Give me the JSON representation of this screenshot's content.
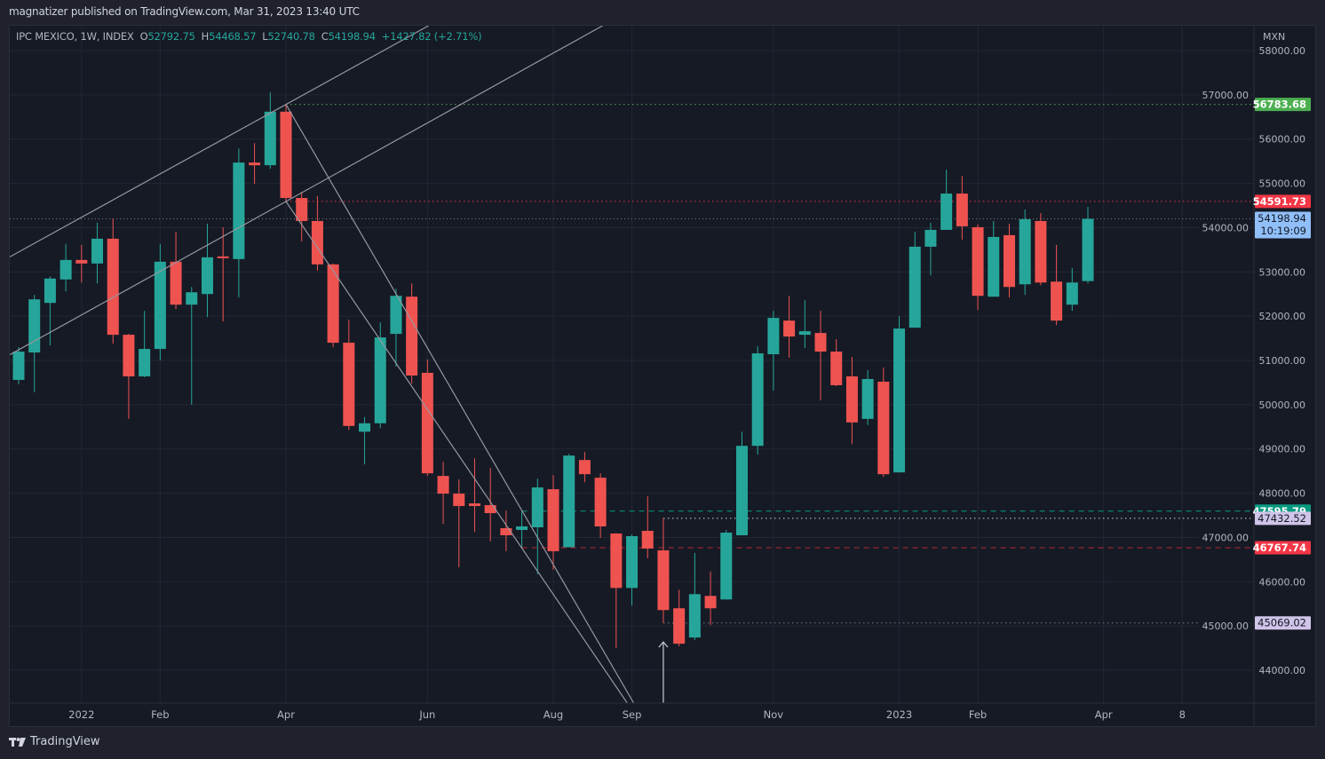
{
  "header": {
    "published": "magnatizer published on TradingView.com, Mar 31, 2023 13:40 UTC"
  },
  "legend": {
    "symbol": "IPC MEXICO, 1W, INDEX",
    "o_label": "O",
    "o_value": "52792.75",
    "h_label": "H",
    "h_value": "54468.57",
    "l_label": "L",
    "l_value": "52740.78",
    "c_label": "C",
    "c_value": "54198.94",
    "change": "+1427.82 (+2.71%)"
  },
  "footer": {
    "brand": "TradingView",
    "logo_icon": "tradingview-logo-icon"
  },
  "colors": {
    "up": "#26a69a",
    "down": "#ef5350",
    "background": "#161a25",
    "grid": "#232733"
  },
  "chart_data": {
    "type": "candlestick",
    "interval": "1W",
    "currency": "MXN",
    "grid": true,
    "ylim": [
      43250,
      58900
    ],
    "y_ticks": [
      "58000.00",
      "57000.00",
      "56000.00",
      "55000.00",
      "54000.00",
      "53000.00",
      "52000.00",
      "51000.00",
      "50000.00",
      "49000.00",
      "48000.00",
      "47000.00",
      "46000.00",
      "45000.00",
      "44000.00"
    ],
    "x_ticks": [
      {
        "label": "2022",
        "date": "2022-01-03"
      },
      {
        "label": "Feb",
        "date": "2022-02-07"
      },
      {
        "label": "Apr",
        "date": "2022-04-04"
      },
      {
        "label": "Jun",
        "date": "2022-06-06"
      },
      {
        "label": "Aug",
        "date": "2022-08-01"
      },
      {
        "label": "Sep",
        "date": "2022-09-05"
      },
      {
        "label": "Nov",
        "date": "2022-11-07"
      },
      {
        "label": "2023",
        "date": "2023-01-02"
      },
      {
        "label": "Feb",
        "date": "2023-02-06"
      },
      {
        "label": "Apr",
        "date": "2023-04-03"
      },
      {
        "label": "8",
        "date": "2023-05-08"
      }
    ],
    "columns": [
      "date",
      "open",
      "high",
      "low",
      "close"
    ],
    "candles": [
      [
        "2021-12-06",
        50560,
        51300,
        50460,
        51200
      ],
      [
        "2021-12-13",
        51180,
        52480,
        50280,
        52380
      ],
      [
        "2021-12-20",
        52300,
        52900,
        51340,
        52850
      ],
      [
        "2021-12-27",
        52830,
        53630,
        52560,
        53270
      ],
      [
        "2022-01-03",
        53270,
        53610,
        52760,
        53190
      ],
      [
        "2022-01-10",
        53190,
        54110,
        52740,
        53750
      ],
      [
        "2022-01-17",
        53750,
        54210,
        51380,
        51580
      ],
      [
        "2022-01-24",
        51580,
        51600,
        49680,
        50640
      ],
      [
        "2022-01-31",
        50640,
        52120,
        50620,
        51260
      ],
      [
        "2022-02-07",
        51260,
        53630,
        51000,
        53230
      ],
      [
        "2022-02-14",
        53230,
        53910,
        52160,
        52260
      ],
      [
        "2022-02-21",
        52260,
        52660,
        50000,
        52540
      ],
      [
        "2022-02-28",
        52500,
        54090,
        51980,
        53330
      ],
      [
        "2022-03-07",
        53350,
        54010,
        51880,
        53310
      ],
      [
        "2022-03-14",
        53290,
        55790,
        52420,
        55470
      ],
      [
        "2022-03-21",
        55470,
        55910,
        54990,
        55410
      ],
      [
        "2022-03-28",
        55410,
        57060,
        55330,
        56620
      ],
      [
        "2022-04-04",
        56620,
        56783.68,
        54591.73,
        54670
      ],
      [
        "2022-04-11",
        54670,
        54810,
        53690,
        54150
      ],
      [
        "2022-04-18",
        54150,
        54710,
        53030,
        53170
      ],
      [
        "2022-04-25",
        53170,
        53190,
        51300,
        51400
      ],
      [
        "2022-05-02",
        51400,
        51920,
        49430,
        49520
      ],
      [
        "2022-05-09",
        49390,
        49720,
        48650,
        49580
      ],
      [
        "2022-05-16",
        49580,
        51860,
        49470,
        51520
      ],
      [
        "2022-05-23",
        51600,
        52620,
        50860,
        52460
      ],
      [
        "2022-05-30",
        52440,
        52740,
        50480,
        50660
      ],
      [
        "2022-06-06",
        50720,
        51020,
        48390,
        48450
      ],
      [
        "2022-06-13",
        48390,
        48710,
        47310,
        47990
      ],
      [
        "2022-06-20",
        47990,
        48310,
        46330,
        47710
      ],
      [
        "2022-06-27",
        47770,
        48790,
        47130,
        47710
      ],
      [
        "2022-07-04",
        47730,
        48570,
        46910,
        47550
      ],
      [
        "2022-07-11",
        47210,
        47610,
        46690,
        47050
      ],
      [
        "2022-07-18",
        47170,
        47595.79,
        46767.74,
        47250
      ],
      [
        "2022-07-25",
        47230,
        48330,
        46170,
        48130
      ],
      [
        "2022-08-01",
        48090,
        48410,
        46270,
        46690
      ],
      [
        "2022-08-08",
        46780,
        48890,
        46780,
        48850
      ],
      [
        "2022-08-15",
        48750,
        48930,
        48250,
        48430
      ],
      [
        "2022-08-22",
        48350,
        48450,
        46990,
        47250
      ],
      [
        "2022-08-29",
        47090,
        47100,
        44500,
        45860
      ],
      [
        "2022-09-05",
        45860,
        47070,
        45460,
        47030
      ],
      [
        "2022-09-12",
        47150,
        47930,
        46530,
        46750
      ],
      [
        "2022-09-19",
        46710,
        47432.52,
        45069.02,
        45360
      ],
      [
        "2022-09-26",
        45400,
        45820,
        44540,
        44600
      ],
      [
        "2022-10-03",
        44740,
        46650,
        44680,
        45720
      ],
      [
        "2022-10-10",
        45680,
        46230,
        45020,
        45400
      ],
      [
        "2022-10-17",
        45600,
        47170,
        45600,
        47110
      ],
      [
        "2022-10-24",
        47050,
        49390,
        47050,
        49070
      ],
      [
        "2022-10-31",
        49070,
        51320,
        48870,
        51160
      ],
      [
        "2022-11-07",
        51140,
        52120,
        50320,
        51960
      ],
      [
        "2022-11-14",
        51900,
        52460,
        51060,
        51540
      ],
      [
        "2022-11-21",
        51580,
        52360,
        51280,
        51660
      ],
      [
        "2022-11-28",
        51620,
        52120,
        50100,
        51200
      ],
      [
        "2022-12-05",
        51200,
        51480,
        50420,
        50440
      ],
      [
        "2022-12-12",
        50640,
        51080,
        49110,
        49600
      ],
      [
        "2022-12-19",
        49680,
        50780,
        49540,
        50580
      ],
      [
        "2022-12-26",
        50520,
        50840,
        48370,
        48430
      ],
      [
        "2023-01-02",
        48470,
        52000,
        48470,
        51720
      ],
      [
        "2023-01-09",
        51740,
        53910,
        51740,
        53570
      ],
      [
        "2023-01-16",
        53570,
        54110,
        52920,
        53950
      ],
      [
        "2023-01-23",
        53950,
        55310,
        53950,
        54770
      ],
      [
        "2023-01-30",
        54770,
        55170,
        53730,
        54030
      ],
      [
        "2023-02-06",
        54010,
        54070,
        52140,
        52460
      ],
      [
        "2023-02-13",
        52440,
        54150,
        52440,
        53790
      ],
      [
        "2023-02-20",
        53830,
        54090,
        52420,
        52660
      ],
      [
        "2023-02-27",
        52720,
        54410,
        52480,
        54190
      ],
      [
        "2023-03-06",
        54150,
        54330,
        52700,
        52760
      ],
      [
        "2023-03-13",
        52780,
        53610,
        51800,
        51900
      ],
      [
        "2023-03-20",
        52260,
        53090,
        52120,
        52760
      ],
      [
        "2023-03-27",
        52792.75,
        54468.57,
        52740.78,
        54198.94
      ]
    ],
    "levels": [
      {
        "label": "56783.68",
        "price": 56783.68,
        "from": "2022-04-04",
        "line_color": "#4caf50",
        "style": "dotted",
        "badge_bg": "#4caf50",
        "badge_fg": "#ffffff"
      },
      {
        "label": "54591.73",
        "price": 54591.73,
        "from": "2022-04-04",
        "line_color": "#f23645",
        "style": "dotted",
        "badge_bg": "#f23645",
        "badge_fg": "#ffffff"
      },
      {
        "label": "47595.79",
        "price": 47595.79,
        "from": "2022-07-18",
        "line_color": "#089981",
        "style": "dashed",
        "badge_bg": "#089981",
        "badge_fg": "#ffffff"
      },
      {
        "label": "47432.52",
        "price": 47432.52,
        "from": "2022-09-19",
        "line_color": "#d1d4dc",
        "style": "dotted",
        "badge_bg": "#d1c4e9",
        "badge_fg": "#131722"
      },
      {
        "label": "46767.74",
        "price": 46767.74,
        "from": "2022-07-18",
        "line_color": "#b22833",
        "style": "dashed",
        "badge_bg": "#f23645",
        "badge_fg": "#ffffff"
      },
      {
        "label": "45069.02",
        "price": 45069.02,
        "from": "2022-09-19",
        "line_color": "#787b86",
        "style": "dotted",
        "badge_bg": "#d1c4e9",
        "badge_fg": "#131722"
      }
    ],
    "last_price": {
      "label": "54198.94",
      "price": 54198.94,
      "countdown": "10:19:09",
      "badge_bg": "#90bff9",
      "badge_fg": "#131722",
      "line_color": "#787b86"
    },
    "trendlines": [
      {
        "from": [
          "2021-12-06",
          53450
        ],
        "to": [
          "2022-04-04",
          56783.68
        ],
        "extend": "both"
      },
      {
        "from": [
          "2021-12-06",
          51240
        ],
        "to": [
          "2022-04-04",
          54591.73
        ],
        "extend": "both"
      },
      {
        "from": [
          "2022-04-04",
          56783.68
        ],
        "to": [
          "2022-09-05",
          43330
        ],
        "extend": "right"
      },
      {
        "from": [
          "2022-04-04",
          54591.73
        ],
        "to": [
          "2022-08-29",
          43627
        ],
        "extend": "right"
      }
    ],
    "arrow": {
      "date": "2022-09-19",
      "from_price": 43250,
      "to_price": 44640
    }
  }
}
